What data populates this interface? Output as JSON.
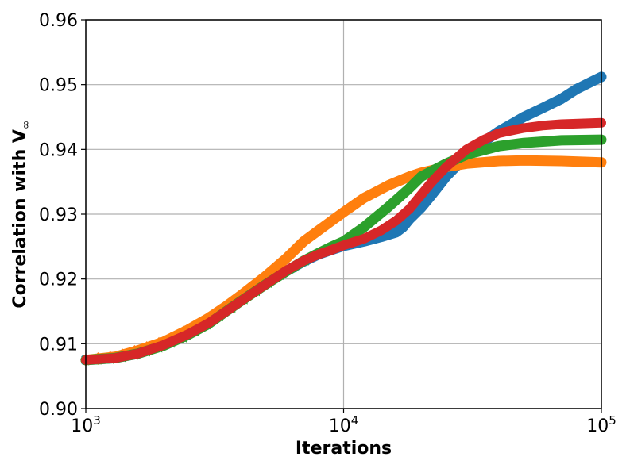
{
  "chart_data": {
    "type": "line",
    "title": "",
    "xlabel": "Iterations",
    "ylabel": "Correlation with V",
    "ylabel_sub": "∞",
    "xscale": "log",
    "xlim": [
      1000,
      100000
    ],
    "ylim": [
      0.9,
      0.96
    ],
    "grid": true,
    "x_ticks": [
      {
        "value": 1000,
        "base": "10",
        "exp": "3"
      },
      {
        "value": 10000,
        "base": "10",
        "exp": "4"
      },
      {
        "value": 100000,
        "base": "10",
        "exp": "5"
      }
    ],
    "y_ticks": [
      {
        "value": 0.9,
        "label": "0.90"
      },
      {
        "value": 0.91,
        "label": "0.91"
      },
      {
        "value": 0.92,
        "label": "0.92"
      },
      {
        "value": 0.93,
        "label": "0.93"
      },
      {
        "value": 0.94,
        "label": "0.94"
      },
      {
        "value": 0.95,
        "label": "0.95"
      },
      {
        "value": 0.96,
        "label": "0.96"
      }
    ],
    "series": [
      {
        "color": "#1f77b4",
        "marker": "x",
        "points": [
          [
            1000,
            0.9075
          ],
          [
            1300,
            0.9078
          ],
          [
            1600,
            0.9085
          ],
          [
            2000,
            0.9098
          ],
          [
            2500,
            0.9115
          ],
          [
            3000,
            0.9133
          ],
          [
            3500,
            0.9152
          ],
          [
            4000,
            0.9168
          ],
          [
            5000,
            0.9193
          ],
          [
            6000,
            0.9212
          ],
          [
            7000,
            0.9227
          ],
          [
            8000,
            0.9238
          ],
          [
            9000,
            0.9245
          ],
          [
            10000,
            0.9251
          ],
          [
            12000,
            0.9258
          ],
          [
            14000,
            0.9265
          ],
          [
            16000,
            0.9272
          ],
          [
            17000,
            0.928
          ],
          [
            18000,
            0.9292
          ],
          [
            20000,
            0.931
          ],
          [
            22000,
            0.933
          ],
          [
            25000,
            0.9358
          ],
          [
            30000,
            0.939
          ],
          [
            35000,
            0.9412
          ],
          [
            40000,
            0.9428
          ],
          [
            50000,
            0.945
          ],
          [
            60000,
            0.9465
          ],
          [
            70000,
            0.9478
          ],
          [
            80000,
            0.9493
          ],
          [
            90000,
            0.9503
          ],
          [
            100000,
            0.9512
          ]
        ]
      },
      {
        "color": "#ff7f0e",
        "marker": "diamond",
        "points": [
          [
            1000,
            0.9075
          ],
          [
            1300,
            0.908
          ],
          [
            1600,
            0.909
          ],
          [
            2000,
            0.9103
          ],
          [
            2500,
            0.9122
          ],
          [
            3000,
            0.914
          ],
          [
            3500,
            0.9158
          ],
          [
            4000,
            0.9175
          ],
          [
            5000,
            0.9205
          ],
          [
            6000,
            0.9232
          ],
          [
            7000,
            0.9258
          ],
          [
            8000,
            0.9275
          ],
          [
            9000,
            0.929
          ],
          [
            10000,
            0.9303
          ],
          [
            12000,
            0.9325
          ],
          [
            15000,
            0.9345
          ],
          [
            18000,
            0.9358
          ],
          [
            20000,
            0.9364
          ],
          [
            25000,
            0.9373
          ],
          [
            30000,
            0.9378
          ],
          [
            40000,
            0.9382
          ],
          [
            50000,
            0.9383
          ],
          [
            70000,
            0.9382
          ],
          [
            100000,
            0.938
          ]
        ]
      },
      {
        "color": "#2ca02c",
        "marker": "triangle",
        "points": [
          [
            1000,
            0.9075
          ],
          [
            1300,
            0.9078
          ],
          [
            1600,
            0.9085
          ],
          [
            2000,
            0.9097
          ],
          [
            2500,
            0.9114
          ],
          [
            3000,
            0.9131
          ],
          [
            3500,
            0.915
          ],
          [
            4000,
            0.9166
          ],
          [
            5000,
            0.9192
          ],
          [
            6000,
            0.9212
          ],
          [
            7000,
            0.9228
          ],
          [
            8000,
            0.924
          ],
          [
            9000,
            0.925
          ],
          [
            10000,
            0.9258
          ],
          [
            12000,
            0.928
          ],
          [
            15000,
            0.9312
          ],
          [
            18000,
            0.934
          ],
          [
            20000,
            0.9358
          ],
          [
            25000,
            0.9378
          ],
          [
            30000,
            0.9392
          ],
          [
            40000,
            0.9405
          ],
          [
            50000,
            0.941
          ],
          [
            70000,
            0.9414
          ],
          [
            100000,
            0.9415
          ]
        ]
      },
      {
        "color": "#d62728",
        "marker": "none",
        "points": [
          [
            1000,
            0.9075
          ],
          [
            1300,
            0.9078
          ],
          [
            1600,
            0.9085
          ],
          [
            2000,
            0.9098
          ],
          [
            2500,
            0.9115
          ],
          [
            3000,
            0.9132
          ],
          [
            3500,
            0.915
          ],
          [
            4000,
            0.9166
          ],
          [
            5000,
            0.9192
          ],
          [
            6000,
            0.9213
          ],
          [
            7000,
            0.9228
          ],
          [
            8000,
            0.9238
          ],
          [
            9000,
            0.9245
          ],
          [
            10000,
            0.9252
          ],
          [
            12000,
            0.9262
          ],
          [
            14000,
            0.9275
          ],
          [
            16000,
            0.929
          ],
          [
            18000,
            0.9308
          ],
          [
            20000,
            0.933
          ],
          [
            22000,
            0.935
          ],
          [
            25000,
            0.9373
          ],
          [
            30000,
            0.94
          ],
          [
            35000,
            0.9415
          ],
          [
            40000,
            0.9425
          ],
          [
            50000,
            0.9433
          ],
          [
            60000,
            0.9437
          ],
          [
            70000,
            0.9439
          ],
          [
            100000,
            0.9441
          ]
        ]
      }
    ]
  }
}
